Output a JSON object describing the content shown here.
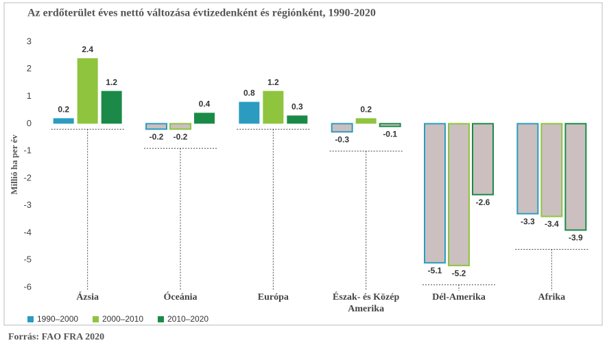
{
  "chart_data": {
    "type": "bar",
    "title": "Az erdőterület éves nettó változása évtizedenként és régiónként, 1990-2020",
    "y_label": "Millió ha per év",
    "categories": [
      "Ázsia",
      "Óceánia",
      "Európa",
      "Észak- és Közép Amerika",
      "Dél-Amerika",
      "Afrika"
    ],
    "series": [
      {
        "name": "1990–2000",
        "color": "#2b9cc0",
        "values": [
          0.2,
          -0.2,
          0.8,
          -0.3,
          -5.1,
          -3.3
        ]
      },
      {
        "name": "2000–2010",
        "color": "#8fc43e",
        "values": [
          2.4,
          -0.2,
          1.2,
          0.2,
          -5.2,
          -3.4
        ]
      },
      {
        "name": "2010–2020",
        "color": "#1b8a48",
        "values": [
          1.2,
          0.4,
          0.3,
          -0.1,
          -2.6,
          -3.9
        ]
      }
    ],
    "ylim": [
      -6,
      3
    ],
    "yticks": [
      3,
      2,
      1,
      0,
      -1,
      -2,
      -3,
      -4,
      -5,
      -6
    ],
    "source": "Forrás: FAO FRA 2020"
  }
}
